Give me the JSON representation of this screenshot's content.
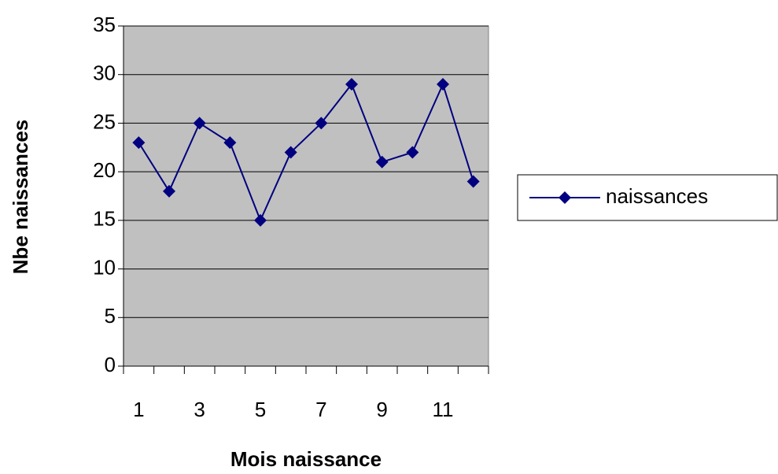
{
  "chart_data": {
    "type": "line",
    "x_label": "Mois naissance",
    "y_label": "Nbe naissances",
    "categories": [
      1,
      null,
      3,
      null,
      5,
      null,
      7,
      null,
      9,
      null,
      11,
      null
    ],
    "series": [
      {
        "name": "naissances",
        "color": "#000080",
        "values": [
          23,
          18,
          25,
          23,
          15,
          22,
          25,
          29,
          21,
          22,
          29,
          19
        ]
      }
    ],
    "ylim": [
      0,
      35
    ],
    "yticks": [
      0,
      5,
      10,
      15,
      20,
      25,
      30,
      35
    ],
    "grid": true,
    "legend": "right",
    "plot_background": "#c0c0c0"
  }
}
